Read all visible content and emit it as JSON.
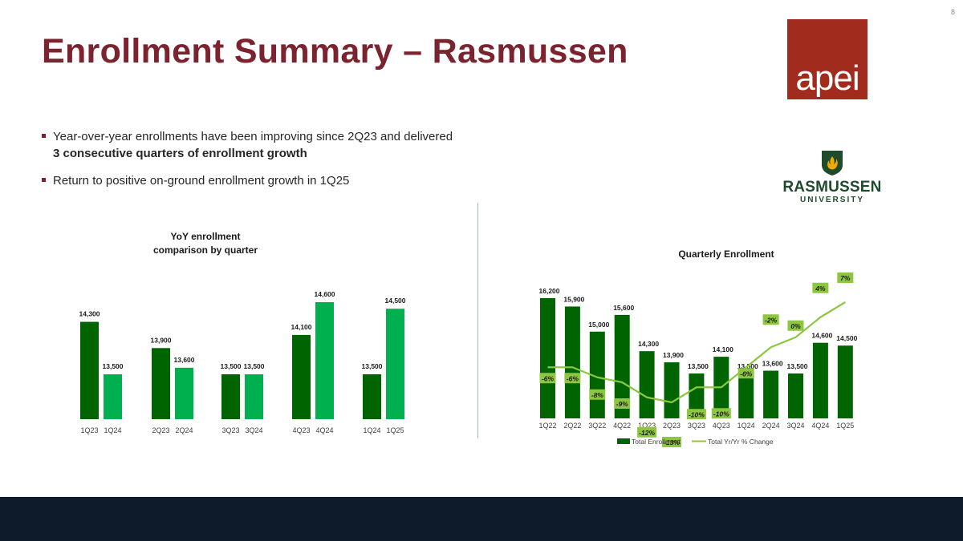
{
  "page_number": "8",
  "title": "Enrollment Summary – Rasmussen",
  "logos": {
    "apei": "apei",
    "rasmussen_name": "RASMUSSEN",
    "rasmussen_sub": "UNIVERSITY"
  },
  "bullets": [
    {
      "text": "Year-over-year enrollments have been improving since 2Q23 and delivered ",
      "bold": "3 consecutive quarters of enrollment growth"
    },
    {
      "text": "Return to positive on-ground enrollment growth in 1Q25",
      "bold": ""
    }
  ],
  "colors": {
    "title": "#7b2430",
    "dark_green": "#006400",
    "light_green": "#00b04f",
    "line_green": "#8dc63f",
    "pct_label_bg": "#8dc63f",
    "footer": "#0d1b2a"
  },
  "chart_data": [
    {
      "type": "bar",
      "title": "YoY enrollment comparison by quarter",
      "title_lines": [
        "YoY enrollment",
        "comparison by quarter"
      ],
      "groups": [
        {
          "labels": [
            "1Q23",
            "1Q24"
          ],
          "values": [
            14300,
            13500
          ],
          "value_labels": [
            "14,300",
            "13,500"
          ]
        },
        {
          "labels": [
            "2Q23",
            "2Q24"
          ],
          "values": [
            13900,
            13600
          ],
          "value_labels": [
            "13,900",
            "13,600"
          ]
        },
        {
          "labels": [
            "3Q23",
            "3Q24"
          ],
          "values": [
            13500,
            13500
          ],
          "value_labels": [
            "13,500",
            "13,500"
          ]
        },
        {
          "labels": [
            "4Q23",
            "4Q24"
          ],
          "values": [
            14100,
            14600
          ],
          "value_labels": [
            "14,100",
            "14,600"
          ]
        },
        {
          "labels": [
            "1Q24",
            "1Q25"
          ],
          "values": [
            13500,
            14500
          ],
          "value_labels": [
            "13,500",
            "14,500"
          ]
        }
      ],
      "ylim": [
        12000,
        15000
      ]
    },
    {
      "type": "bar+line",
      "title": "Quarterly Enrollment",
      "categories": [
        "1Q22",
        "2Q22",
        "3Q22",
        "4Q22",
        "1Q23",
        "2Q23",
        "3Q23",
        "4Q23",
        "1Q24",
        "2Q24",
        "3Q24",
        "4Q24",
        "1Q25"
      ],
      "series": [
        {
          "name": "Total Enrollment",
          "type": "bar",
          "values": [
            16200,
            15900,
            15000,
            15600,
            14300,
            13900,
            13500,
            14100,
            13500,
            13600,
            13500,
            14600,
            14500
          ],
          "value_labels": [
            "16,200",
            "15,900",
            "15,000",
            "15,600",
            "14,300",
            "13,900",
            "13,500",
            "14,100",
            "13,500",
            "13,600",
            "13,500",
            "14,600",
            "14,500"
          ]
        },
        {
          "name": "Total Yr/Yr % Change",
          "type": "line",
          "values": [
            -6,
            -6,
            -8,
            -9,
            -12,
            -13,
            -10,
            -10,
            -6,
            -2,
            0,
            4,
            7
          ],
          "value_labels": [
            "-6%",
            "-6%",
            "-8%",
            "-9%",
            "-12%",
            "-13%",
            "-10%",
            "-10%",
            "-6%",
            "-2%",
            "0%",
            "4%",
            "7%"
          ]
        }
      ],
      "bar_ylim": [
        12000,
        16200
      ],
      "line_ylim": [
        -14,
        8
      ],
      "legend": [
        "Total Enrollment",
        "Total Yr/Yr % Change"
      ],
      "legend_position": "bottom"
    }
  ]
}
